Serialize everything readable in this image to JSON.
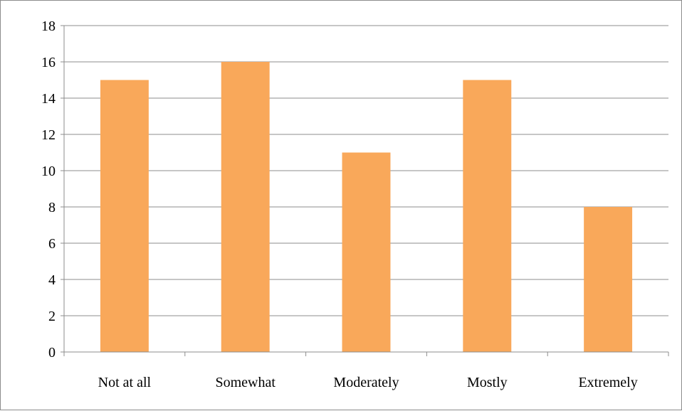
{
  "chart_data": {
    "type": "bar",
    "categories": [
      "Not at all",
      "Somewhat",
      "Moderately",
      "Mostly",
      "Extremely"
    ],
    "values": [
      15,
      16,
      11,
      15,
      8
    ],
    "ylim": [
      0,
      18
    ],
    "ytick_step": 2,
    "yticks": [
      "0",
      "2",
      "4",
      "6",
      "8",
      "10",
      "12",
      "14",
      "16",
      "18"
    ],
    "grid": true,
    "legend": "none",
    "bar_color": "#F9A85A",
    "grid_color": "#8C8C8C",
    "axis_color": "#8C8C8C"
  }
}
